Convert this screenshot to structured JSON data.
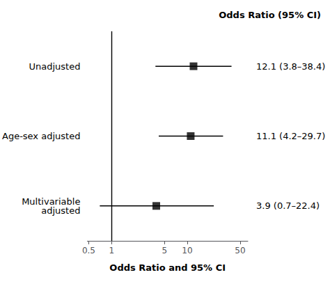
{
  "chart_data": {
    "type": "scatter",
    "annotation": "Odds Ratio (95% CI)",
    "xlabel": "Odds Ratio and 95% CI",
    "categories": [
      "Unadjusted",
      "Age-sex adjusted",
      "Multivariable\nadjusted"
    ],
    "values": [
      12.1,
      11.1,
      3.9
    ],
    "ci_lo": [
      3.8,
      4.2,
      0.7
    ],
    "ci_hi": [
      38.4,
      29.7,
      22.4
    ],
    "data_labels": true,
    "value_labels": [
      "12.1 (3.8–38.4)",
      "11.1 (4.2–29.7)",
      "3.9 (0.7–22.4)"
    ],
    "vline": 1,
    "log": "x",
    "xlim": [
      0.47863009232263837,
      63.09573444801933
    ],
    "xticks": [
      0.5,
      1,
      5,
      10,
      50
    ],
    "grid": false,
    "marker": "square",
    "color": "black"
  }
}
